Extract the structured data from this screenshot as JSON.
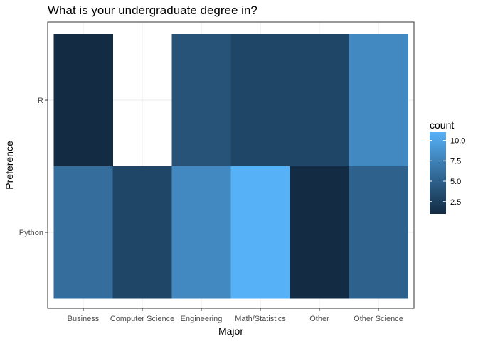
{
  "chart_data": {
    "type": "heatmap",
    "title": "What is your undergraduate degree in?",
    "xlabel": "Major",
    "ylabel": "Preference",
    "x_categories": [
      "Business",
      "Computer Science",
      "Engineering",
      "Math/Statistics",
      "Other",
      "Other Science"
    ],
    "y_categories": [
      "Python",
      "R"
    ],
    "cells": [
      {
        "x": "Business",
        "y": "R",
        "count": 1
      },
      {
        "x": "Engineering",
        "y": "R",
        "count": 4
      },
      {
        "x": "Math/Statistics",
        "y": "R",
        "count": 3
      },
      {
        "x": "Other",
        "y": "R",
        "count": 3
      },
      {
        "x": "Other Science",
        "y": "R",
        "count": 8
      },
      {
        "x": "Business",
        "y": "Python",
        "count": 6
      },
      {
        "x": "Computer Science",
        "y": "Python",
        "count": 3
      },
      {
        "x": "Engineering",
        "y": "Python",
        "count": 8
      },
      {
        "x": "Math/Statistics",
        "y": "Python",
        "count": 11
      },
      {
        "x": "Other",
        "y": "Python",
        "count": 1
      },
      {
        "x": "Other Science",
        "y": "Python",
        "count": 5
      }
    ],
    "legend": {
      "title": "count",
      "breaks": [
        "2.5",
        "5.0",
        "7.5",
        "10.0"
      ],
      "break_values": [
        2.5,
        5.0,
        7.5,
        10.0
      ],
      "min": 1,
      "max": 11,
      "low_color": "#132B43",
      "high_color": "#56B1F7",
      "placement": "right"
    },
    "grid": true
  }
}
